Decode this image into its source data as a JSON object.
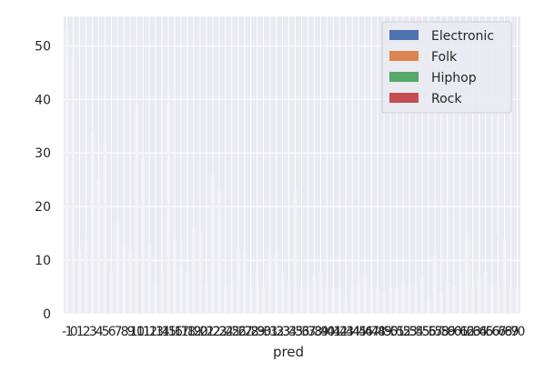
{
  "chart_data": {
    "type": "bar",
    "stacked": true,
    "xlabel": "pred",
    "ylabel": "",
    "ylim": [
      0,
      55.5
    ],
    "yticks": [
      0,
      10,
      20,
      30,
      40,
      50
    ],
    "grid": true,
    "legend_position": "top-right",
    "categories": [
      -1,
      0,
      1,
      2,
      3,
      4,
      5,
      6,
      7,
      8,
      9,
      10,
      11,
      12,
      13,
      14,
      15,
      16,
      17,
      18,
      19,
      20,
      21,
      22,
      23,
      24,
      25,
      26,
      27,
      28,
      29,
      30,
      31,
      32,
      33,
      34,
      35,
      36,
      37,
      38,
      39,
      40,
      41,
      42,
      43,
      44,
      45,
      46,
      47,
      48,
      49,
      50,
      51,
      52,
      53,
      54,
      55,
      56,
      57,
      58,
      59,
      60,
      61,
      62,
      63,
      64,
      65,
      66,
      67,
      68,
      69,
      70
    ],
    "series": [
      {
        "name": "Electronic",
        "color": "#4c72b0",
        "values": [
          53,
          48,
          12,
          14,
          34,
          25,
          32,
          8,
          17,
          13,
          12,
          39,
          29,
          13,
          6,
          8,
          42,
          14,
          9,
          8,
          16,
          15,
          6,
          26,
          23,
          5,
          6,
          12,
          12,
          5,
          8,
          5,
          12,
          12,
          8,
          6,
          23,
          5,
          5,
          7,
          8,
          5,
          5,
          5,
          2,
          6,
          6,
          7,
          5,
          5,
          4,
          5,
          5,
          6,
          5,
          5,
          7,
          3,
          11,
          4,
          6,
          5,
          8,
          14,
          5,
          7,
          8,
          6,
          5,
          14,
          5,
          5
        ]
      },
      {
        "name": "Folk",
        "color": "#dd8452",
        "values": [
          0,
          0,
          0,
          0,
          0,
          0,
          0,
          0,
          0,
          0,
          0,
          0,
          0,
          0,
          0,
          0,
          0,
          0,
          0,
          0,
          0,
          0,
          0,
          0,
          0,
          0,
          0,
          0,
          0,
          0,
          0,
          0,
          0,
          0,
          0,
          0,
          0,
          0,
          0,
          0,
          0,
          0,
          0,
          0,
          0,
          0,
          0,
          0,
          0,
          0,
          0,
          0,
          0,
          0,
          0,
          0,
          0,
          0,
          0,
          0,
          0,
          0,
          0,
          0,
          0,
          0,
          0,
          0,
          0,
          0,
          0,
          0
        ]
      },
      {
        "name": "Hiphop",
        "color": "#55a868",
        "values": [
          0,
          0,
          0,
          0,
          0,
          0,
          0,
          0,
          0,
          0,
          0,
          0,
          0,
          0,
          0,
          0,
          0,
          0,
          0,
          0,
          0,
          0,
          0,
          0,
          0,
          0,
          0,
          0,
          0,
          0,
          0,
          0,
          0,
          0,
          0,
          0,
          0,
          0,
          0,
          0,
          0,
          0,
          0,
          0,
          0,
          0,
          0,
          0,
          0,
          0,
          0,
          0,
          0,
          0,
          0,
          0,
          0,
          0,
          0,
          0,
          0,
          0,
          0,
          0,
          0,
          0,
          0,
          0,
          0,
          0,
          0,
          0
        ]
      },
      {
        "name": "Rock",
        "color": "#c44e52",
        "values": [
          0,
          0,
          0,
          0,
          0,
          0,
          0,
          0,
          0,
          0,
          0,
          0,
          0,
          0,
          0,
          0,
          0,
          0,
          0,
          0,
          0,
          0,
          0,
          0,
          0,
          0,
          0,
          0,
          0,
          0,
          0,
          0,
          0,
          0,
          0,
          0,
          0,
          0,
          0,
          0,
          0,
          0,
          0,
          0,
          0,
          0,
          0,
          0,
          0,
          0,
          0,
          0,
          0,
          0,
          0,
          0,
          0,
          0,
          0,
          0,
          0,
          0,
          0,
          0,
          0,
          0,
          0,
          0,
          0,
          0,
          0,
          0
        ]
      }
    ]
  },
  "style": {
    "plot_background": "#eaeaf2",
    "grid_color": "#ffffff",
    "bar_color": "#f4f4f9"
  }
}
